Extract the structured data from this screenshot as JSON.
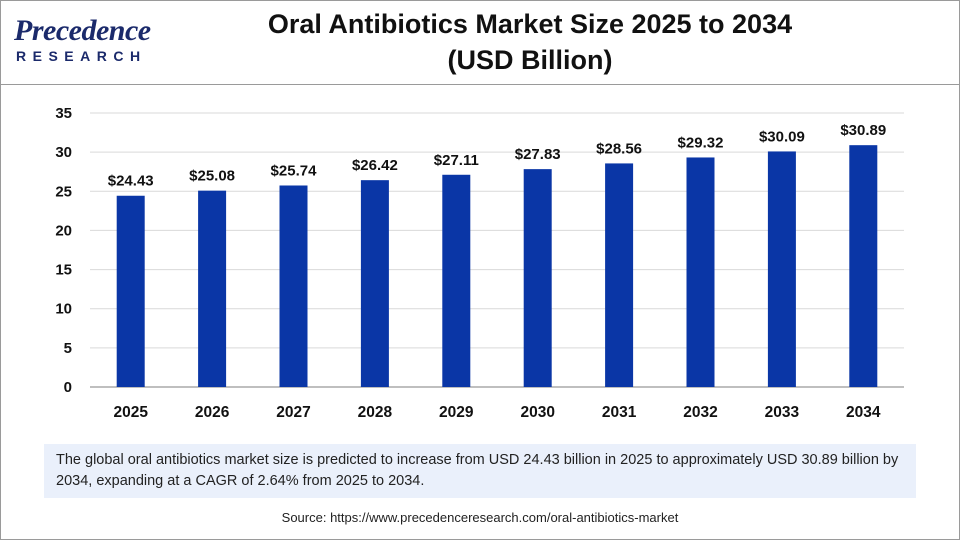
{
  "logo": {
    "main": "Precedence",
    "sub": "RESEARCH"
  },
  "chart_data": {
    "type": "bar",
    "title": "Oral Antibiotics Market Size 2025 to 2034",
    "title_line2": "(USD Billion)",
    "categories": [
      "2025",
      "2026",
      "2027",
      "2028",
      "2029",
      "2030",
      "2031",
      "2032",
      "2033",
      "2034"
    ],
    "values": [
      24.43,
      25.08,
      25.74,
      26.42,
      27.11,
      27.83,
      28.56,
      29.32,
      30.09,
      30.89
    ],
    "data_labels": [
      "$24.43",
      "$25.08",
      "$25.74",
      "$26.42",
      "$27.11",
      "$27.83",
      "$28.56",
      "$29.32",
      "$30.09",
      "$30.89"
    ],
    "yticks": [
      0,
      5,
      10,
      15,
      20,
      25,
      30,
      35
    ],
    "ylim": [
      0,
      35
    ],
    "xlabel": "",
    "ylabel": "",
    "bar_color": "#0a36a6",
    "grid": true
  },
  "note": "The global oral antibiotics market size is predicted to increase from USD 24.43 billion in 2025 to approximately USD 30.89 billion by 2034, expanding at a CAGR of 2.64% from 2025 to 2034.",
  "source": "Source: https://www.precedenceresearch.com/oral-antibiotics-market"
}
